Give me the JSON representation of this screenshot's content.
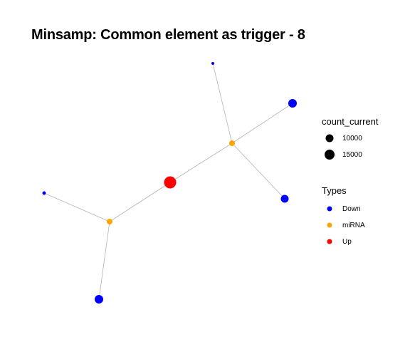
{
  "title": "Minsamp: Common element as trigger - 8",
  "graph": {
    "edge_color": "#b3b3b3",
    "nodes": [
      {
        "id": "n1",
        "type": "Down"
      },
      {
        "id": "n2",
        "type": "Down"
      },
      {
        "id": "n3",
        "type": "miRNA"
      },
      {
        "id": "n4",
        "type": "Down"
      },
      {
        "id": "n5",
        "type": "Up"
      },
      {
        "id": "n6",
        "type": "Down"
      },
      {
        "id": "n7",
        "type": "miRNA"
      },
      {
        "id": "n8",
        "type": "Down"
      }
    ],
    "edges": [
      [
        "n1",
        "n3"
      ],
      [
        "n2",
        "n3"
      ],
      [
        "n3",
        "n4"
      ],
      [
        "n3",
        "n5"
      ],
      [
        "n5",
        "n7"
      ],
      [
        "n7",
        "n6"
      ],
      [
        "n7",
        "n8"
      ]
    ]
  },
  "legend": {
    "size_title": "count_current",
    "size_items": [
      {
        "label": "10000"
      },
      {
        "label": "15000"
      }
    ],
    "type_title": "Types",
    "type_items": [
      {
        "label": "Down",
        "color": "#0000ff"
      },
      {
        "label": "miRNA",
        "color": "#ffa500"
      },
      {
        "label": "Up",
        "color": "#ff0000"
      }
    ]
  }
}
